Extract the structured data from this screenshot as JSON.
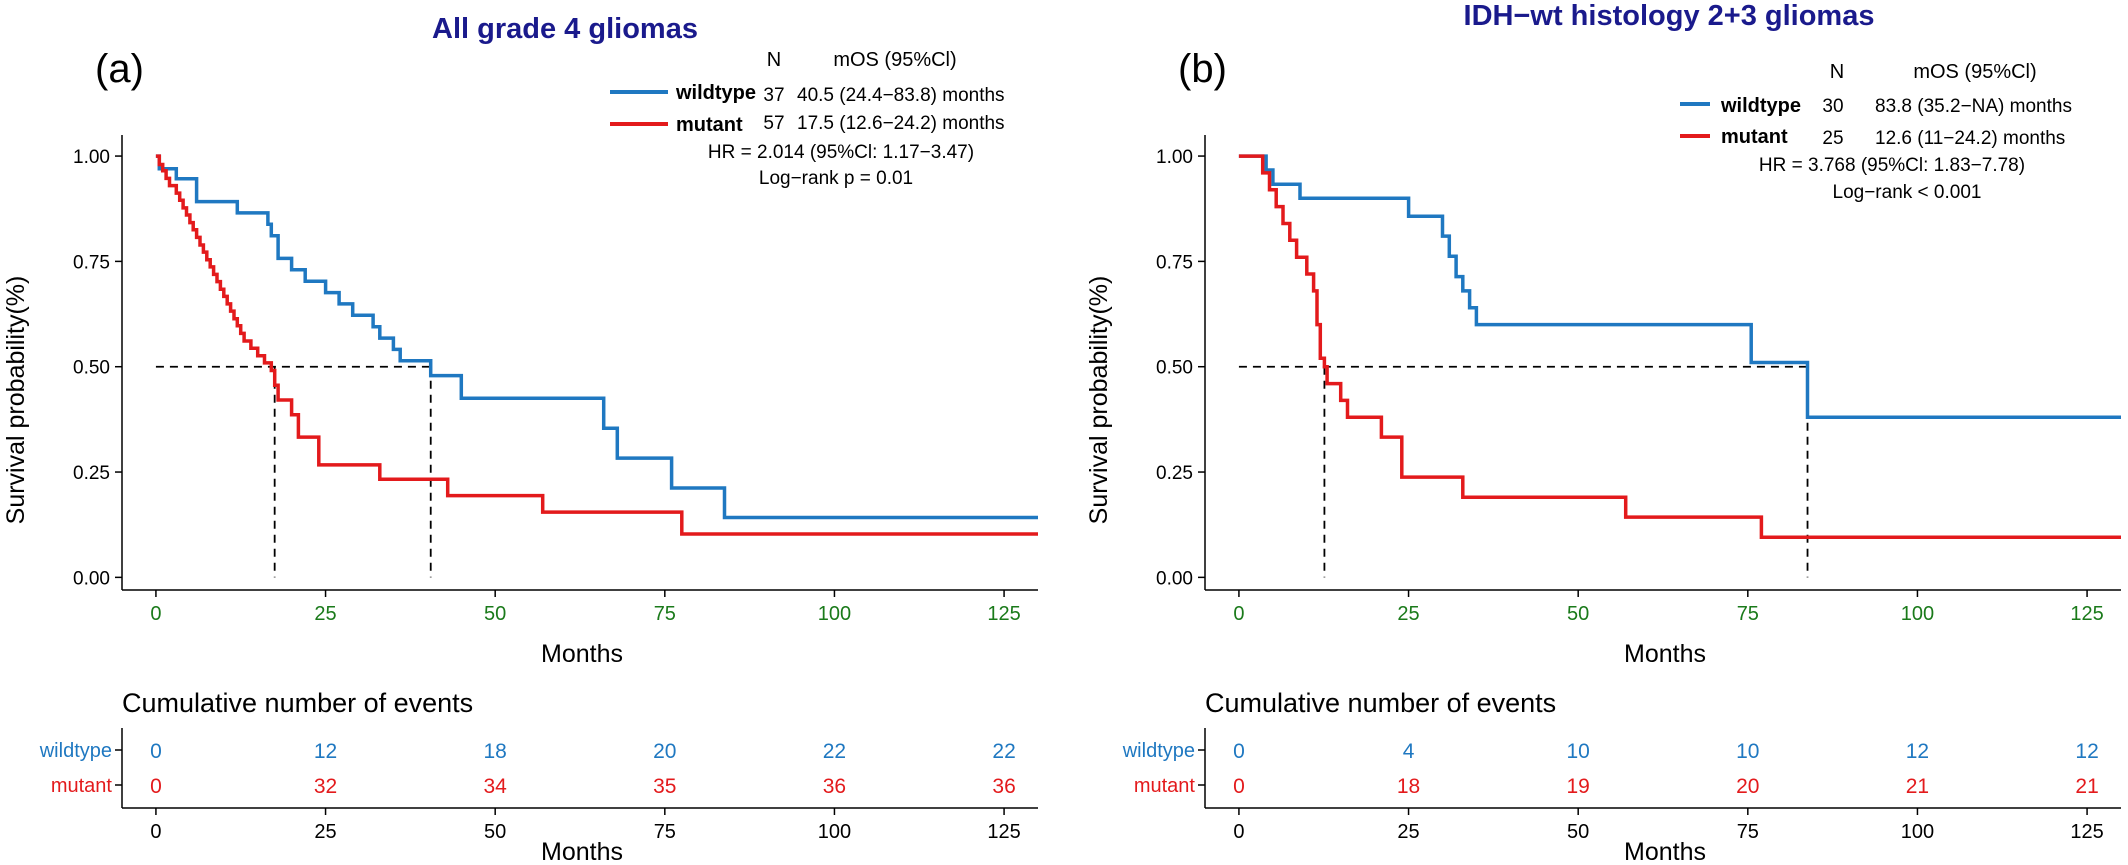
{
  "colors": {
    "title": "#1a1a8c",
    "wildtype": "#1f78c1",
    "mutant": "#e31a1c",
    "tick_x": "#1a7a1a",
    "axis": "#000000",
    "reference": "#000000"
  },
  "chart_data": [
    {
      "type": "line",
      "subtype": "kaplan-meier",
      "panel_label": "(a)",
      "title": "All grade 4 gliomas",
      "xlabel": "Months",
      "ylabel": "Survival probability(%)",
      "xlim": [
        -5,
        130
      ],
      "ylim": [
        -0.03,
        1.05
      ],
      "xticks": [
        0,
        25,
        50,
        75,
        100,
        125
      ],
      "xtick_labels": [
        "0",
        "25",
        "50",
        "75",
        "100",
        "125"
      ],
      "yticks": [
        0,
        0.25,
        0.5,
        0.75,
        1.0
      ],
      "ytick_labels": [
        "0.00",
        "0.25",
        "0.50",
        "0.75",
        "1.00"
      ],
      "legend": {
        "header_n": "N",
        "header_mos": "mOS (95%Cl)",
        "rows": [
          {
            "name": "wildtype",
            "n": "37",
            "mos": "40.5 (24.4−83.8) months"
          },
          {
            "name": "mutant",
            "n": "57",
            "mos": "17.5 (12.6−24.2) months"
          }
        ],
        "hr": "HR = 2.014 (95%Cl: 1.17−3.47)",
        "logrank": "Log−rank p = 0.01"
      },
      "median_lines": [
        {
          "series": "mutant",
          "x": 17.5
        },
        {
          "series": "wildtype",
          "x": 40.5
        }
      ],
      "series": [
        {
          "name": "wildtype",
          "x": [
            0,
            0.5,
            1,
            3,
            6,
            12,
            16.5,
            17,
            18,
            20,
            22,
            25,
            27,
            29,
            32,
            33,
            35,
            36,
            38,
            40.5,
            45,
            66,
            68,
            75,
            76,
            83.8,
            130
          ],
          "y": [
            1.0,
            0.97,
            0.97,
            0.946,
            0.892,
            0.865,
            0.838,
            0.811,
            0.757,
            0.73,
            0.703,
            0.676,
            0.649,
            0.622,
            0.595,
            0.568,
            0.541,
            0.514,
            0.514,
            0.479,
            0.425,
            0.354,
            0.283,
            0.283,
            0.212,
            0.142,
            0.142
          ]
        },
        {
          "name": "mutant",
          "x": [
            0,
            0.5,
            1,
            1.5,
            2,
            3,
            3.5,
            4,
            4.5,
            5,
            5.5,
            6,
            6.5,
            7,
            7.5,
            8,
            8.5,
            9,
            9.5,
            10,
            10.5,
            11,
            11.5,
            12,
            12.5,
            13,
            14,
            15,
            16,
            17,
            17.5,
            18,
            20,
            21,
            22,
            24,
            33,
            43,
            57,
            77.5,
            130
          ],
          "y": [
            1.0,
            0.98,
            0.965,
            0.947,
            0.93,
            0.912,
            0.895,
            0.877,
            0.86,
            0.842,
            0.825,
            0.807,
            0.789,
            0.772,
            0.754,
            0.737,
            0.719,
            0.702,
            0.684,
            0.667,
            0.649,
            0.632,
            0.614,
            0.597,
            0.579,
            0.561,
            0.544,
            0.526,
            0.509,
            0.491,
            0.456,
            0.421,
            0.386,
            0.333,
            0.333,
            0.267,
            0.233,
            0.194,
            0.155,
            0.103,
            0.103
          ]
        }
      ],
      "risk_table": {
        "title": "Cumulative number of events",
        "xlabel": "Months",
        "times": [
          "0",
          "25",
          "50",
          "75",
          "100",
          "125"
        ],
        "rows": [
          {
            "name": "wildtype",
            "values": [
              "0",
              "12",
              "18",
              "20",
              "22",
              "22"
            ]
          },
          {
            "name": "mutant",
            "values": [
              "0",
              "32",
              "34",
              "35",
              "36",
              "36"
            ]
          }
        ]
      }
    },
    {
      "type": "line",
      "subtype": "kaplan-meier",
      "panel_label": "(b)",
      "title": "IDH−wt histology 2+3 gliomas",
      "xlabel": "Months",
      "ylabel": "Survival probability(%)",
      "xlim": [
        -5,
        130
      ],
      "ylim": [
        -0.03,
        1.05
      ],
      "xticks": [
        0,
        25,
        50,
        75,
        100,
        125
      ],
      "xtick_labels": [
        "0",
        "25",
        "50",
        "75",
        "100",
        "125"
      ],
      "yticks": [
        0,
        0.25,
        0.5,
        0.75,
        1.0
      ],
      "ytick_labels": [
        "0.00",
        "0.25",
        "0.50",
        "0.75",
        "1.00"
      ],
      "legend": {
        "header_n": "N",
        "header_mos": "mOS (95%Cl)",
        "rows": [
          {
            "name": "wildtype",
            "n": "30",
            "mos": "83.8 (35.2−NA) months"
          },
          {
            "name": "mutant",
            "n": "25",
            "mos": "12.6 (11−24.2) months"
          }
        ],
        "hr": "HR = 3.768 (95%Cl: 1.83−7.78)",
        "logrank": "Log−rank < 0.001"
      },
      "median_lines": [
        {
          "series": "mutant",
          "x": 12.6
        },
        {
          "series": "wildtype",
          "x": 83.8
        }
      ],
      "series": [
        {
          "name": "wildtype",
          "x": [
            0,
            4,
            5,
            9,
            25,
            30,
            31,
            32,
            33,
            34,
            35,
            41,
            75.5,
            83.8,
            130
          ],
          "y": [
            1.0,
            0.967,
            0.933,
            0.9,
            0.857,
            0.81,
            0.762,
            0.714,
            0.68,
            0.64,
            0.6,
            0.6,
            0.51,
            0.38,
            0.38
          ]
        },
        {
          "name": "mutant",
          "x": [
            0,
            3.5,
            4.5,
            5.5,
            6.5,
            7.5,
            8.5,
            10,
            11,
            11.5,
            12,
            12.6,
            13,
            15,
            16,
            21,
            24,
            33,
            57,
            77,
            130
          ],
          "y": [
            1.0,
            0.96,
            0.92,
            0.88,
            0.84,
            0.8,
            0.76,
            0.72,
            0.68,
            0.6,
            0.52,
            0.5,
            0.46,
            0.42,
            0.38,
            0.333,
            0.238,
            0.19,
            0.143,
            0.095,
            0.095
          ]
        }
      ],
      "risk_table": {
        "title": "Cumulative number of events",
        "xlabel": "Months",
        "times": [
          "0",
          "25",
          "50",
          "75",
          "100",
          "125"
        ],
        "rows": [
          {
            "name": "wildtype",
            "values": [
              "0",
              "4",
              "10",
              "10",
              "12",
              "12"
            ]
          },
          {
            "name": "mutant",
            "values": [
              "0",
              "18",
              "19",
              "20",
              "21",
              "21"
            ]
          }
        ]
      }
    }
  ]
}
